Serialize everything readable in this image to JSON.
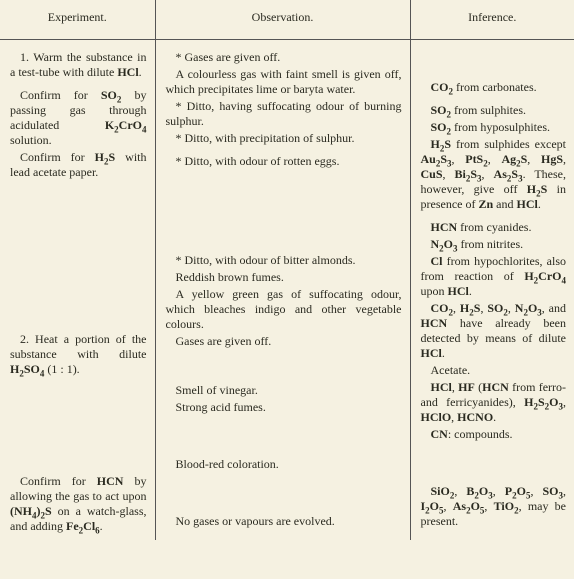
{
  "headers": {
    "col1": "Experiment.",
    "col2": "Observation.",
    "col3": "Inference."
  },
  "exp": {
    "e1": "1. Warm the substance in a test-tube with dilute <b>HCl</b>.",
    "e1_confirm_so2": "Confirm for <b>SO<sub>2</sub></b> by passing gas through acidulated <b>K<sub>2</sub>CrO<sub>4</sub></b> solution.",
    "e1_confirm_h2s": "Confirm for <b>H<sub>2</sub>S</b> with lead acetate paper.",
    "e2": "2. Heat a portion of the substance with dilute <b>H<sub>2</sub>SO<sub>4</sub></b> (1 : 1).",
    "e2_confirm_hcn": "Confirm for <b>HCN</b> by allowing the gas to act upon <b>(NH<sub>4</sub>)<sub>2</sub>S</b> on a watch-glass, and adding <b>Fe<sub>2</sub>Cl<sub>6</sub></b>."
  },
  "obs": {
    "o1": "* Gases are given off.",
    "o2": "A colourless gas with faint smell is given off, which precipitates lime or baryta water.",
    "o3": "* Ditto, having suffocating odour of burning sulphur.",
    "o4": "* Ditto, with precipitation of sulphur.",
    "o5": "* Ditto, with odour of rotten eggs.",
    "o6": "* Ditto, with odour of bitter almonds.",
    "o7": "Reddish brown fumes.",
    "o8": "A yellow green gas of suffocating odour, which bleaches indigo and other vegetable colours.",
    "o9": "Gases are given off.",
    "o10": "Smell of vinegar.",
    "o11": "Strong acid fumes.",
    "o12": "Blood-red coloration.",
    "o13": "No gases or vapours are evolved."
  },
  "inf": {
    "i2": "<b>CO<sub>2</sub></b> from carbonates.",
    "i3": "<b>SO<sub>2</sub></b> from sulphites.",
    "i4": "<b>SO<sub>2</sub></b> from hyposulphites.",
    "i5": "<b>H<sub>2</sub>S</b> from sulphides except <b>Au<sub>2</sub>S<sub>3</sub></b>, <b>PtS<sub>2</sub></b>, <b>Ag<sub>2</sub>S</b>, <b>HgS</b>, <b>CuS</b>, <b>Bi<sub>2</sub>S<sub>3</sub></b>, <b>As<sub>2</sub>S<sub>3</sub></b>. These, however, give off <b>H<sub>2</sub>S</b> in presence of <b>Zn</b> and <b>HCl</b>.",
    "i6": "<b>HCN</b> from cyanides.",
    "i7": "<b>N<sub>2</sub>O<sub>3</sub></b> from nitrites.",
    "i8": "<b>Cl</b> from hypochlorites, also from reaction of <b>H<sub>2</sub>CrO<sub>4</sub></b> upon <b>HCl</b>.",
    "i9": "<b>CO<sub>2</sub></b>, <b>H<sub>2</sub>S</b>, <b>SO<sub>2</sub></b>, <b>N<sub>2</sub>O<sub>3</sub></b>, and <b>HCN</b> have already been detected by means of dilute <b>HCl</b>.",
    "i10": "Acetate.",
    "i11": "<b>HCl</b>, <b>HF</b> (<b>HCN</b> from ferro- and ferricyanides), <b>H<sub>2</sub>S<sub>2</sub>O<sub>3</sub></b>, <b>HClO</b>, <b>HCNO</b>.",
    "i12": "<b>CN</b>: compounds.",
    "i13": "<b>SiO<sub>2</sub></b>, <b>B<sub>2</sub>O<sub>3</sub></b>, <b>P<sub>2</sub>O<sub>5</sub></b>, <b>SO<sub>3</sub></b>, <b>I<sub>2</sub>O<sub>5</sub></b>, <b>As<sub>2</sub>O<sub>5</sub></b>, <b>TiO<sub>2</sub></b>, may be present."
  }
}
